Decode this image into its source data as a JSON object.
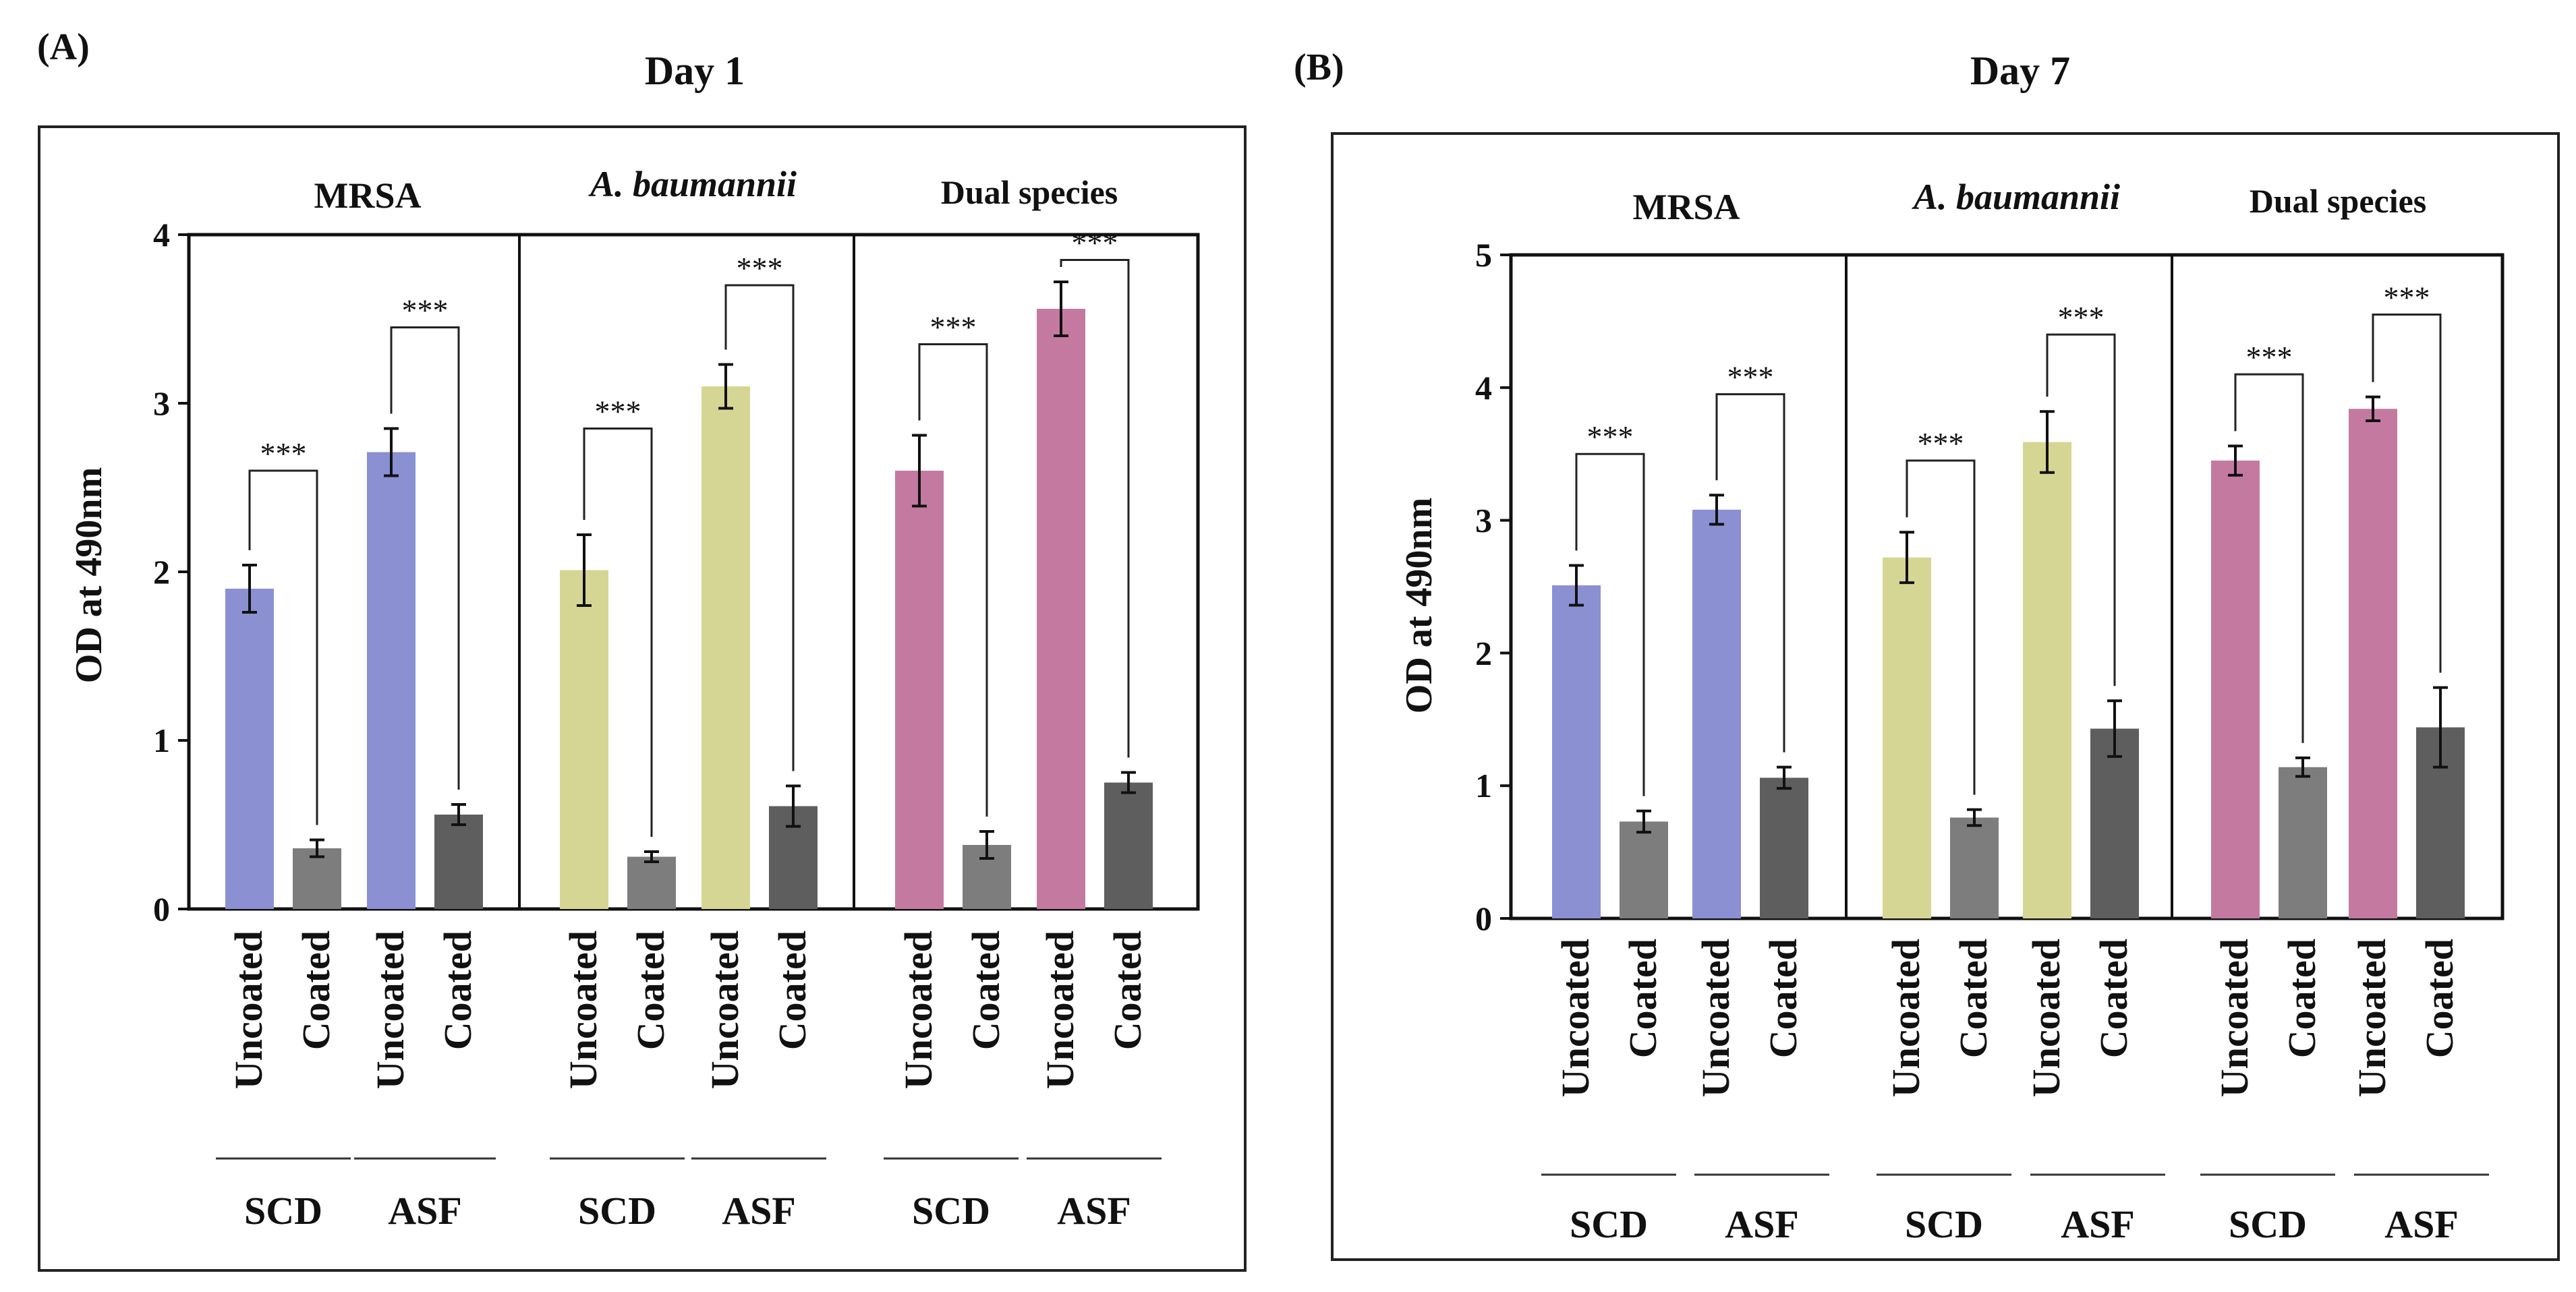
{
  "chart_data": [
    {
      "type": "bar",
      "panel_label": "(A)",
      "title": "Day 1",
      "ylabel": "OD at 490nm",
      "ylim": [
        0,
        4
      ],
      "yticks": [
        "0",
        "1",
        "2",
        "3",
        "4"
      ],
      "tick_values": [
        0,
        1,
        2,
        3,
        4
      ],
      "groups": [
        "MRSA",
        "A. baumannii",
        "Dual species"
      ],
      "conditions": [
        "SCD",
        "ASF"
      ],
      "categories": [
        "Uncoated",
        "Coated",
        "Uncoated",
        "Coated",
        "Uncoated",
        "Coated",
        "Uncoated",
        "Coated",
        "Uncoated",
        "Coated",
        "Uncoated",
        "Coated"
      ],
      "values": [
        1.9,
        0.36,
        2.71,
        0.56,
        2.01,
        0.31,
        3.1,
        0.61,
        2.6,
        0.38,
        3.56,
        0.75
      ],
      "errors": [
        0.14,
        0.05,
        0.14,
        0.06,
        0.21,
        0.03,
        0.13,
        0.12,
        0.21,
        0.08,
        0.16,
        0.06
      ],
      "significance": [
        "***",
        "***",
        "***",
        "***",
        "***",
        "***"
      ],
      "sig_bracket_tops": [
        2.6,
        3.45,
        2.85,
        3.7,
        3.35,
        3.85
      ]
    },
    {
      "type": "bar",
      "panel_label": "(B)",
      "title": "Day 7",
      "ylabel": "OD at 490nm",
      "ylim": [
        0,
        5
      ],
      "yticks": [
        "0",
        "1",
        "2",
        "3",
        "4",
        "5"
      ],
      "tick_values": [
        0,
        1,
        2,
        3,
        4,
        5
      ],
      "groups": [
        "MRSA",
        "A. baumannii",
        "Dual species"
      ],
      "conditions": [
        "SCD",
        "ASF"
      ],
      "categories": [
        "Uncoated",
        "Coated",
        "Uncoated",
        "Coated",
        "Uncoated",
        "Coated",
        "Uncoated",
        "Coated",
        "Uncoated",
        "Coated",
        "Uncoated",
        "Coated"
      ],
      "values": [
        2.51,
        0.73,
        3.08,
        1.06,
        2.72,
        0.76,
        3.59,
        1.43,
        3.45,
        1.14,
        3.84,
        1.44
      ],
      "errors": [
        0.15,
        0.08,
        0.11,
        0.08,
        0.19,
        0.06,
        0.23,
        0.21,
        0.11,
        0.07,
        0.09,
        0.3
      ],
      "significance": [
        "***",
        "***",
        "***",
        "***",
        "***",
        "***"
      ],
      "sig_bracket_tops": [
        3.5,
        3.95,
        3.45,
        4.4,
        4.1,
        4.55
      ]
    }
  ],
  "colors": {
    "mrsa": "#8b90d3",
    "abaumannii": "#d6d694",
    "dual": "#c47aa0",
    "coated_scd": "#7d7d7d",
    "coated_asf": "#5e5e5e"
  }
}
